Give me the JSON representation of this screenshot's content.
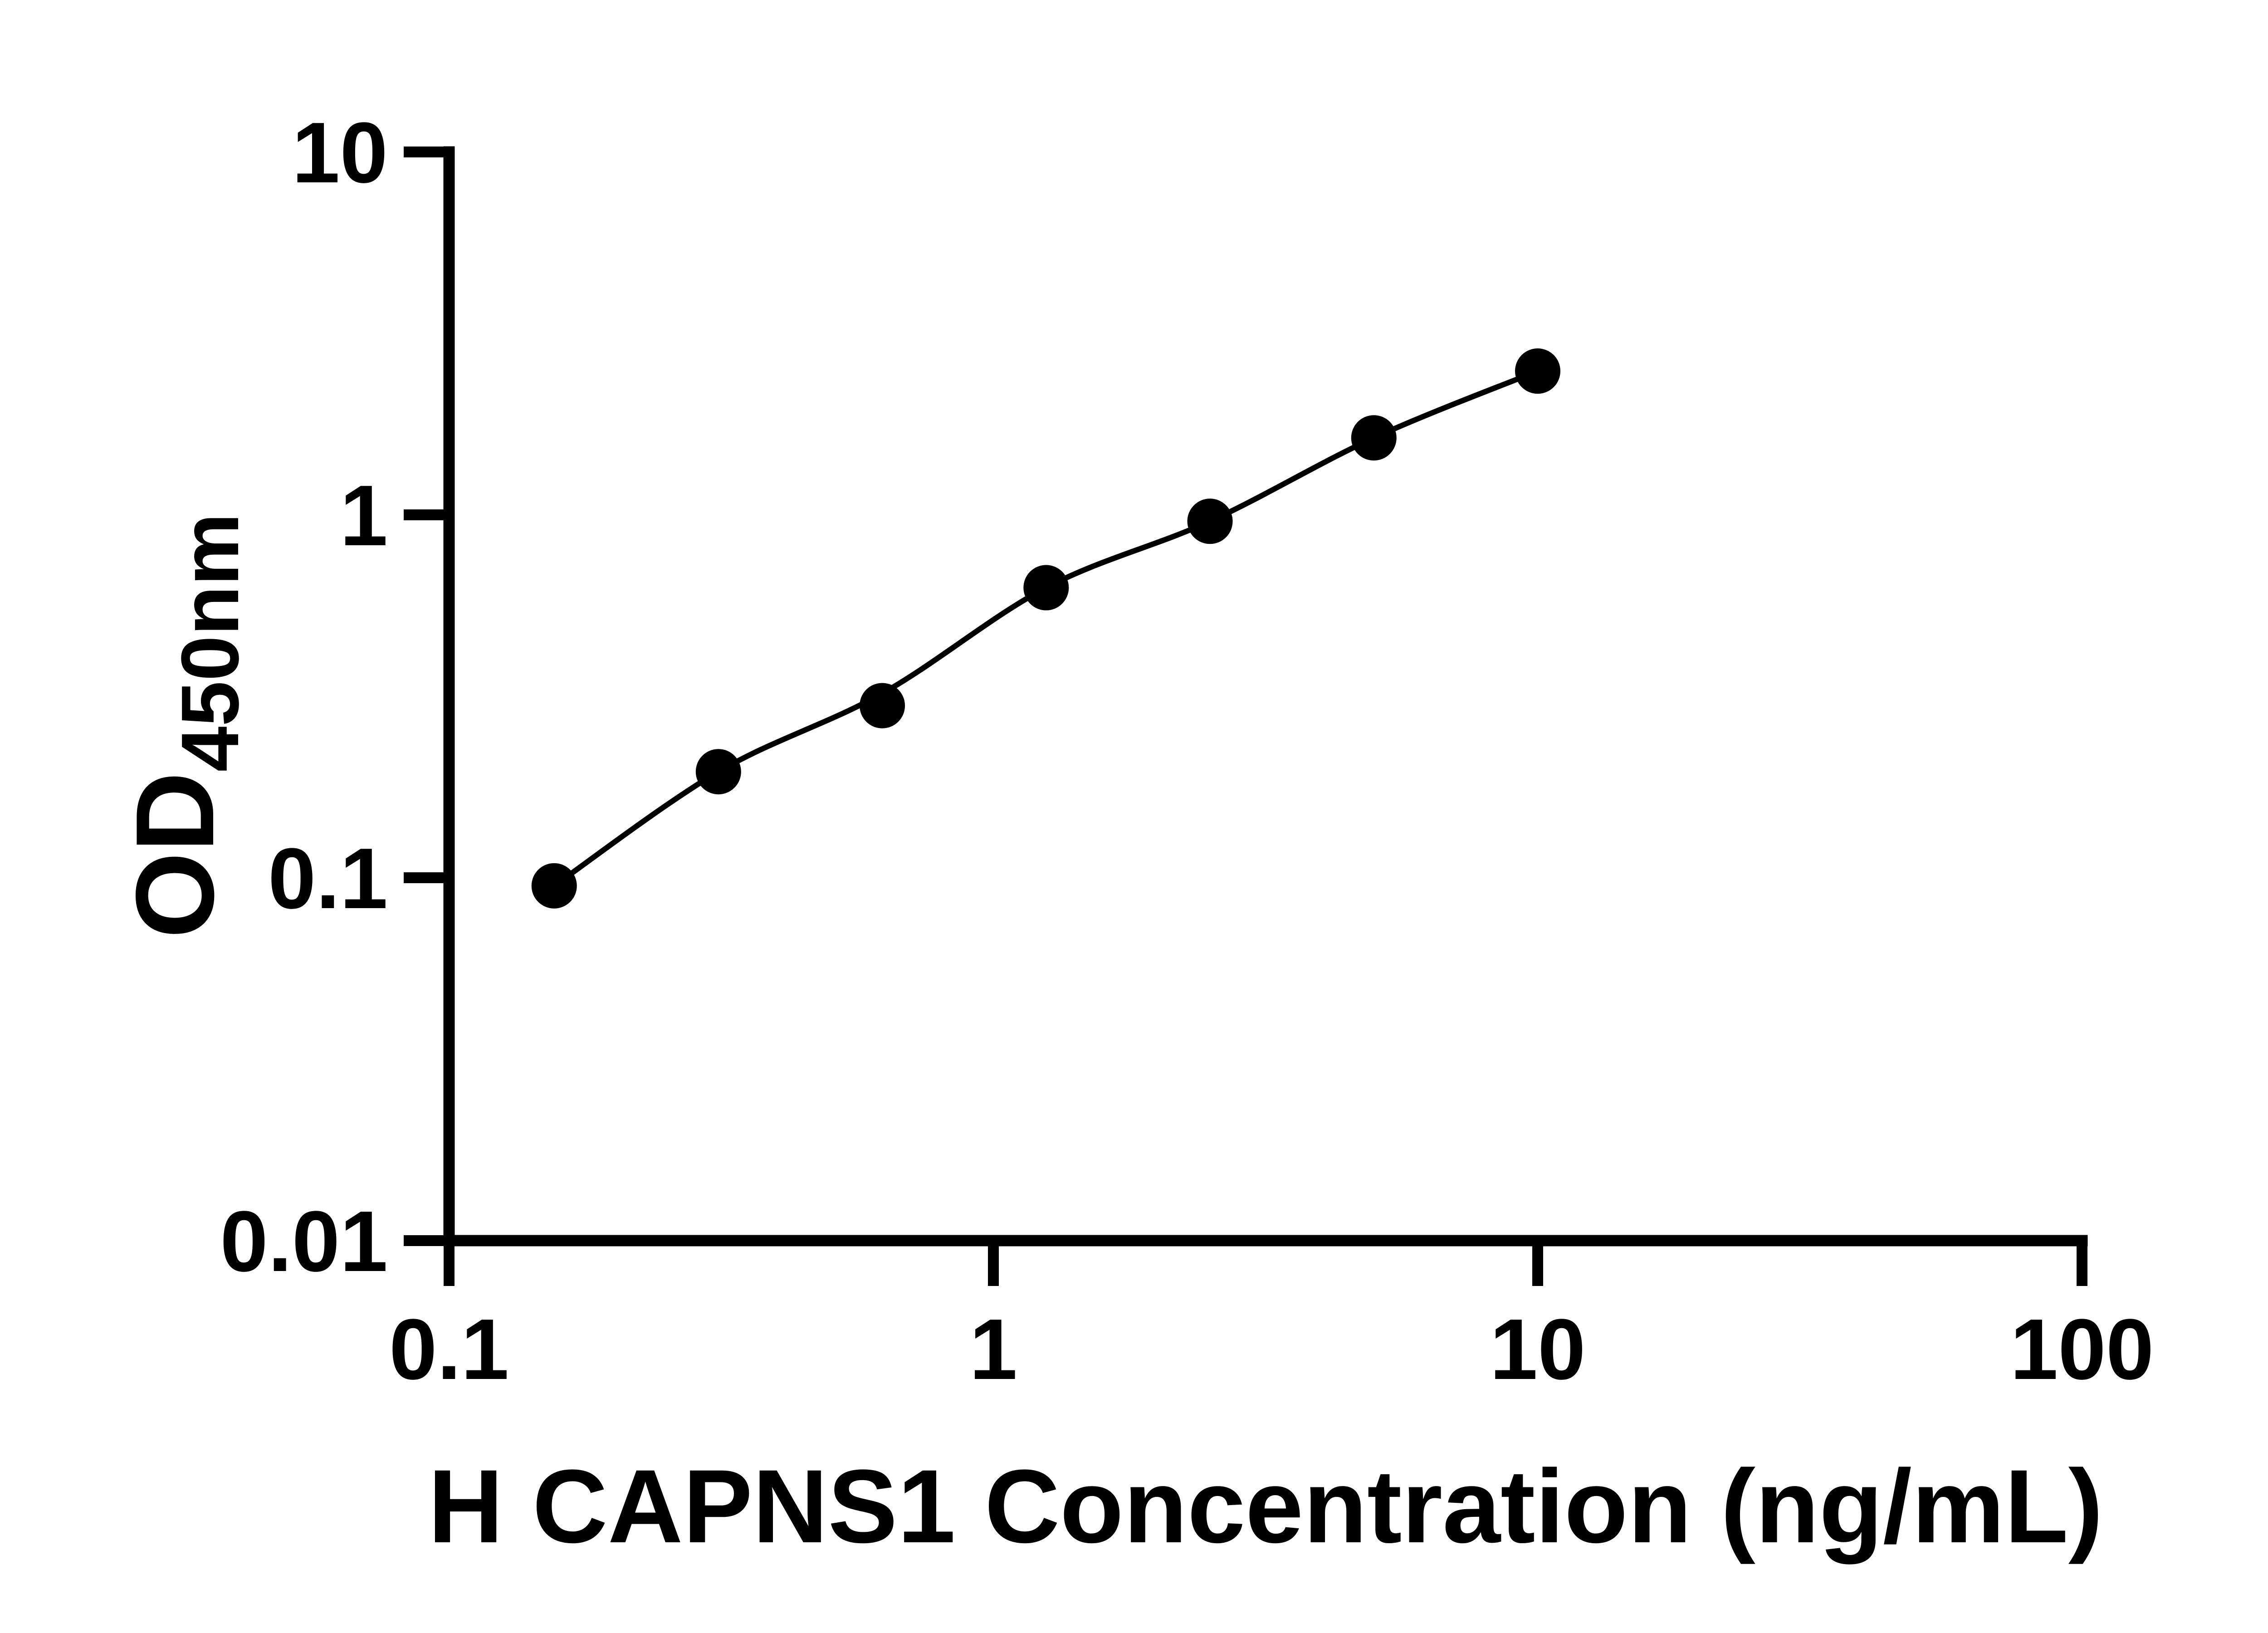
{
  "chart_data": {
    "type": "scatter-line",
    "title": "",
    "xlabel": "H CAPNS1 Concentration (ng/mL)",
    "ylabel_main": "OD",
    "ylabel_sub": "450nm",
    "x": [
      0.156,
      0.3125,
      0.625,
      1.25,
      2.5,
      5,
      10
    ],
    "od": [
      0.095,
      0.196,
      0.298,
      0.63,
      0.96,
      1.63,
      2.49
    ],
    "trend_od": [
      0.095,
      0.196,
      0.322,
      0.63,
      0.96,
      1.63,
      2.49
    ],
    "x_ticks": [
      {
        "value": 0.1,
        "label": "0.1"
      },
      {
        "value": 1,
        "label": "1"
      },
      {
        "value": 10,
        "label": "10"
      },
      {
        "value": 100,
        "label": "100"
      }
    ],
    "y_ticks": [
      {
        "value": 0.01,
        "label": "0.01"
      },
      {
        "value": 0.1,
        "label": "0.1"
      },
      {
        "value": 1,
        "label": "1"
      },
      {
        "value": 10,
        "label": "10"
      }
    ],
    "xlim": [
      0.1,
      100
    ],
    "ylim": [
      0.01,
      10
    ],
    "x_scale": "log",
    "y_scale": "log",
    "grid": false,
    "legend": "none",
    "marker": "filled-circle",
    "colors": {
      "axis": "#000000",
      "line": "#000000",
      "marker": "#000000",
      "background": "#ffffff"
    }
  }
}
